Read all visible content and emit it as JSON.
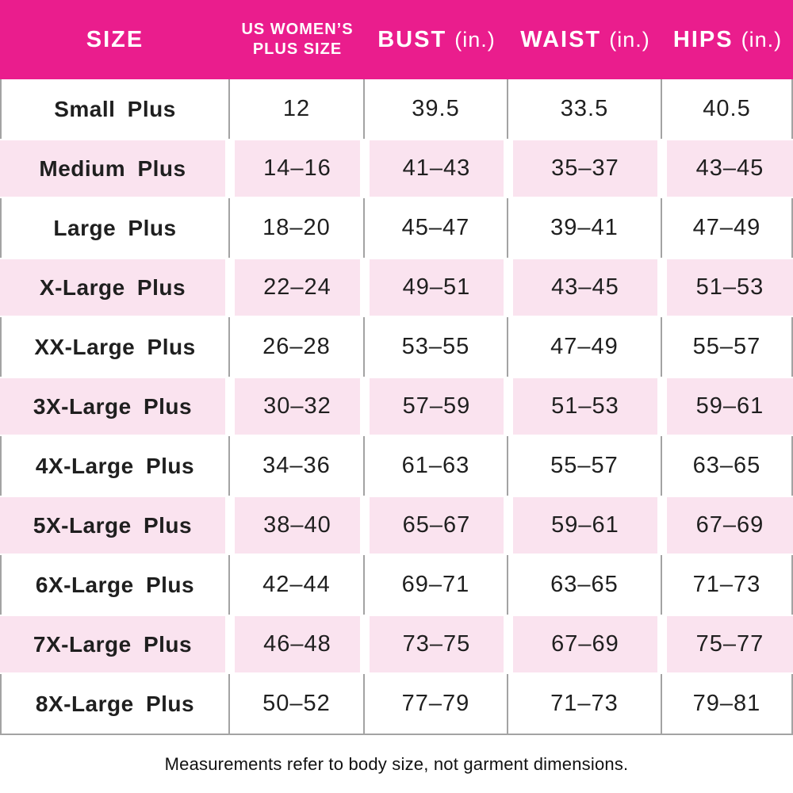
{
  "header": {
    "size": "SIZE",
    "plus_line1": "US WOMEN’S",
    "plus_line2": "PLUS SIZE",
    "bust": "BUST",
    "waist": "WAIST",
    "hips": "HIPS",
    "unit": "(in.)"
  },
  "chart_data": {
    "type": "table",
    "title": "Plus size measurement chart",
    "columns": [
      "SIZE",
      "US WOMEN'S PLUS SIZE",
      "BUST (in.)",
      "WAIST (in.)",
      "HIPS (in.)"
    ],
    "rows": [
      [
        "Small Plus",
        "12",
        "39.5",
        "33.5",
        "40.5"
      ],
      [
        "Medium Plus",
        "14–16",
        "41–43",
        "35–37",
        "43–45"
      ],
      [
        "Large Plus",
        "18–20",
        "45–47",
        "39–41",
        "47–49"
      ],
      [
        "X-Large Plus",
        "22–24",
        "49–51",
        "43–45",
        "51–53"
      ],
      [
        "XX-Large Plus",
        "26–28",
        "53–55",
        "47–49",
        "55–57"
      ],
      [
        "3X-Large Plus",
        "30–32",
        "57–59",
        "51–53",
        "59–61"
      ],
      [
        "4X-Large Plus",
        "34–36",
        "61–63",
        "55–57",
        "63–65"
      ],
      [
        "5X-Large Plus",
        "38–40",
        "65–67",
        "59–61",
        "67–69"
      ],
      [
        "6X-Large Plus",
        "42–44",
        "69–71",
        "63–65",
        "71–73"
      ],
      [
        "7X-Large Plus",
        "46–48",
        "73–75",
        "67–69",
        "75–77"
      ],
      [
        "8X-Large Plus",
        "50–52",
        "77–79",
        "71–73",
        "79–81"
      ]
    ],
    "footnote": "Measurements refer to body size, not garment dimensions.",
    "layout": {
      "row_striping": "white / light pink alternating",
      "grid": "vertical lines in white rows only"
    }
  },
  "colors": {
    "header_bg": "#EA1D8D",
    "row_alt_bg": "#FAE3EF",
    "grid_line": "#A3A3A3",
    "text": "#1F1F1F",
    "header_text": "#FFFFFF"
  }
}
